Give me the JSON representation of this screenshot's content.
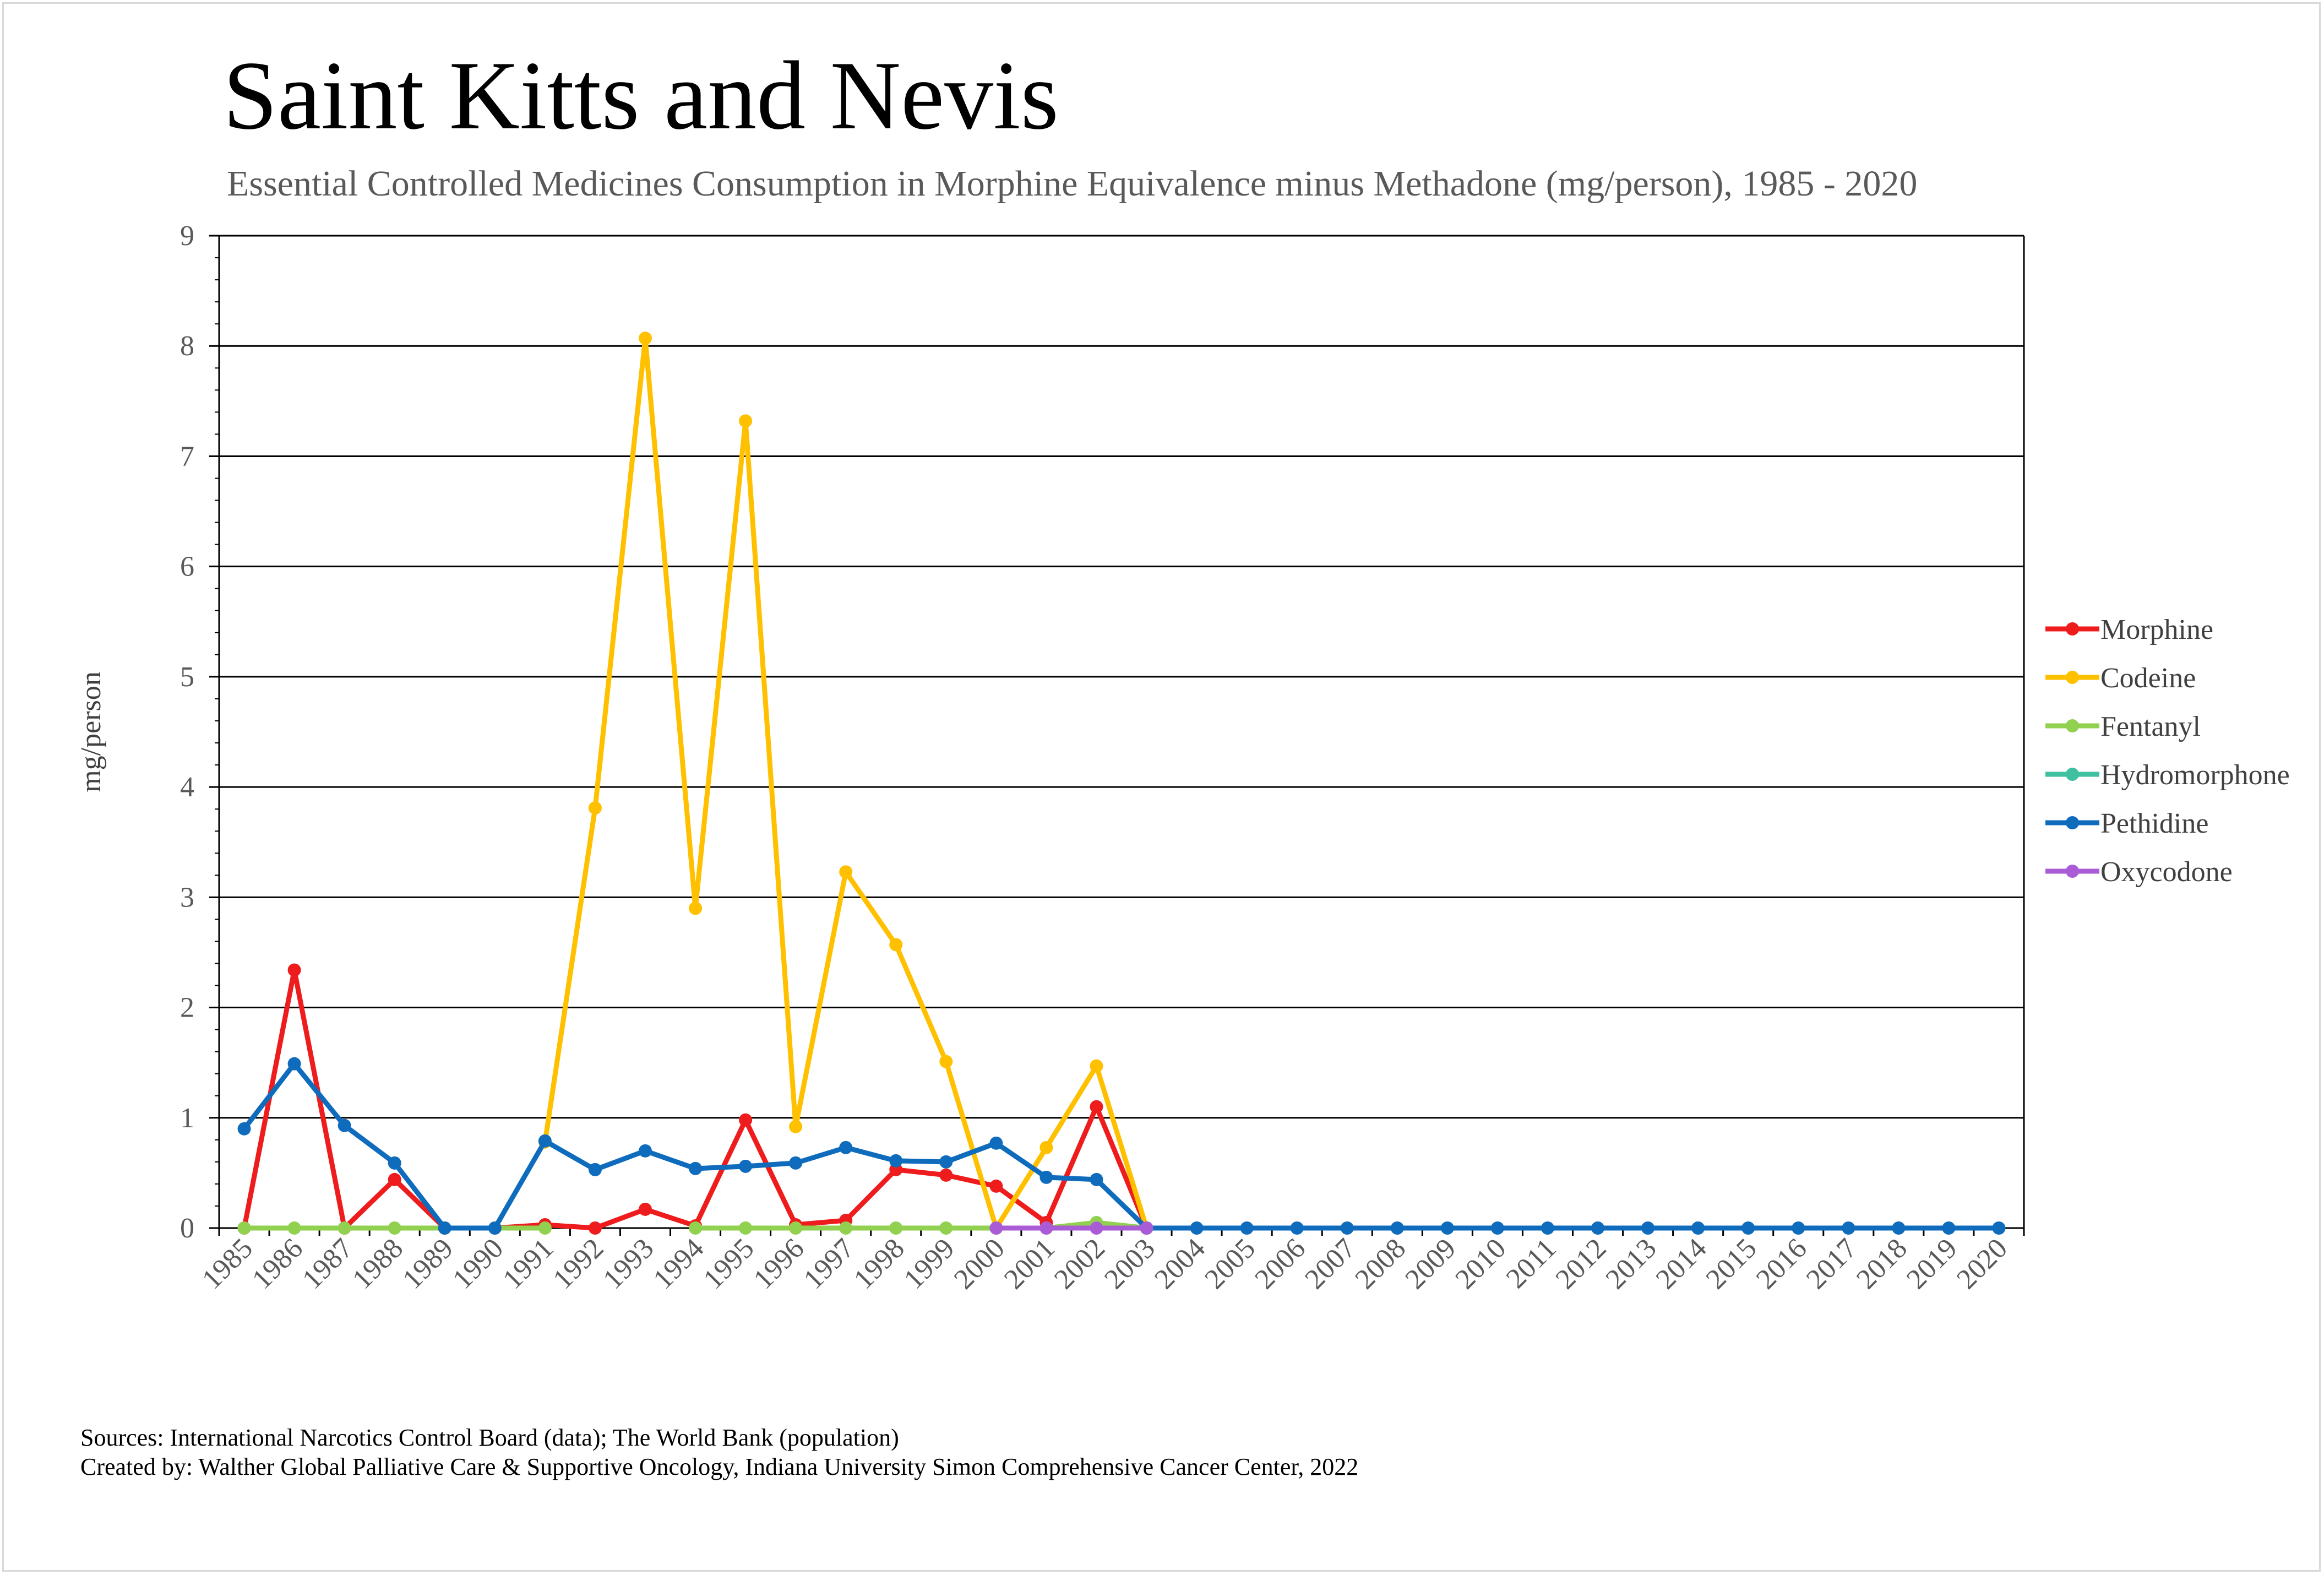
{
  "chart_data": {
    "type": "line",
    "title": "Saint Kitts and Nevis",
    "subtitle": "Essential Controlled Medicines Consumption in Morphine Equivalence minus Methadone (mg/person), 1985 - 2020",
    "xlabel": "",
    "ylabel": "mg/person",
    "ylim": [
      0,
      9
    ],
    "yticks": [
      "0",
      "1",
      "2",
      "3",
      "4",
      "5",
      "6",
      "7",
      "8",
      "9"
    ],
    "grid": true,
    "legend_position": "right",
    "categories": [
      "1985",
      "1986",
      "1987",
      "1988",
      "1989",
      "1990",
      "1991",
      "1992",
      "1993",
      "1994",
      "1995",
      "1996",
      "1997",
      "1998",
      "1999",
      "2000",
      "2001",
      "2002",
      "2003",
      "2004",
      "2005",
      "2006",
      "2007",
      "2008",
      "2009",
      "2010",
      "2011",
      "2012",
      "2013",
      "2014",
      "2015",
      "2016",
      "2017",
      "2018",
      "2019",
      "2020"
    ],
    "series": [
      {
        "name": "Morphine",
        "color": "#ee1c1c",
        "values": [
          0,
          2.34,
          0,
          0.44,
          0,
          0,
          0.03,
          0,
          0.17,
          0.02,
          0.98,
          0.03,
          0.07,
          0.53,
          0.48,
          0.38,
          0.05,
          1.1,
          0,
          null,
          null,
          null,
          null,
          null,
          null,
          null,
          null,
          null,
          null,
          null,
          null,
          null,
          null,
          null,
          null,
          null
        ]
      },
      {
        "name": "Codeine",
        "color": "#ffc000",
        "values": [
          null,
          null,
          null,
          null,
          null,
          null,
          0.78,
          3.81,
          8.07,
          2.9,
          7.32,
          0.92,
          3.23,
          2.57,
          1.51,
          0,
          0.73,
          1.47,
          0,
          null,
          null,
          null,
          null,
          null,
          null,
          null,
          null,
          null,
          null,
          null,
          null,
          null,
          null,
          null,
          null,
          null
        ]
      },
      {
        "name": "Fentanyl",
        "color": "#92d050",
        "values": [
          0,
          0,
          0,
          0,
          0,
          0,
          0,
          null,
          null,
          0,
          0,
          0,
          0,
          0,
          0,
          0,
          0,
          0.05,
          0,
          null,
          null,
          null,
          null,
          null,
          null,
          null,
          null,
          null,
          null,
          null,
          null,
          null,
          null,
          null,
          null,
          null
        ]
      },
      {
        "name": "Hydromorphone",
        "color": "#3fc0a0",
        "values": [
          null,
          null,
          null,
          null,
          null,
          null,
          null,
          null,
          null,
          null,
          null,
          null,
          null,
          null,
          null,
          null,
          null,
          null,
          null,
          null,
          null,
          null,
          null,
          null,
          null,
          null,
          null,
          null,
          null,
          null,
          null,
          null,
          null,
          null,
          null,
          null
        ]
      },
      {
        "name": "Pethidine",
        "color": "#0f6cbd",
        "values": [
          0.9,
          1.49,
          0.93,
          0.59,
          0,
          0,
          0.79,
          0.53,
          0.7,
          0.54,
          0.56,
          0.59,
          0.73,
          0.61,
          0.6,
          0.77,
          0.46,
          0.44,
          0,
          0,
          0,
          0,
          0,
          0,
          0,
          0,
          0,
          0,
          0,
          0,
          0,
          0,
          0,
          0,
          0,
          0
        ]
      },
      {
        "name": "Oxycodone",
        "color": "#a95cd6",
        "values": [
          null,
          null,
          null,
          null,
          null,
          null,
          null,
          null,
          null,
          null,
          null,
          null,
          null,
          null,
          null,
          0,
          0,
          0,
          0,
          null,
          null,
          null,
          null,
          null,
          null,
          null,
          null,
          null,
          null,
          null,
          null,
          null,
          null,
          null,
          null,
          null
        ]
      }
    ]
  },
  "footer": {
    "sources": "Sources: International Narcotics Control Board (data); The World Bank (population)",
    "created_by": "Created by: Walther Global Palliative Care & Supportive Oncology, Indiana University Simon Comprehensive Cancer Center, 2022"
  }
}
